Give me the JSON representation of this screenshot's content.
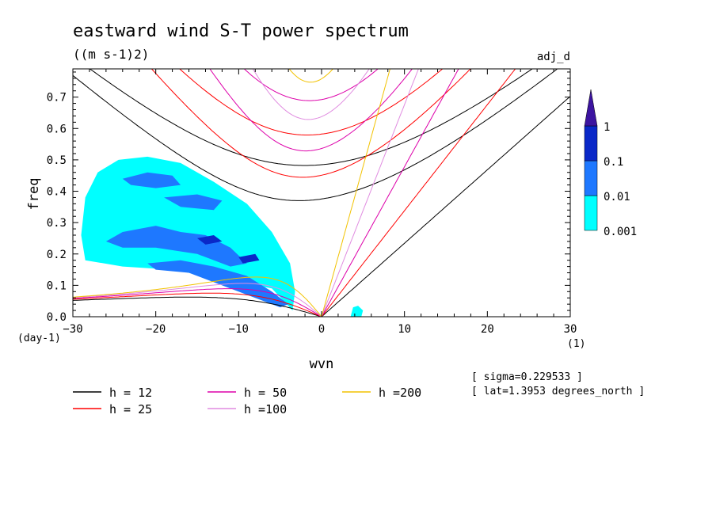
{
  "title": "eastward wind S-T power spectrum",
  "units": "((m s-1)2)",
  "tag": "adj_d",
  "info": [
    "[ sigma=0.229533 ]",
    "[ lat=1.3953 degrees_north ]"
  ],
  "chart_data": {
    "type": "line",
    "xlabel": "wvn",
    "ylabel": "freq",
    "xunit": "(1)",
    "yunit": "(day-1)",
    "xlim": [
      -30,
      30
    ],
    "ylim": [
      0,
      0.79
    ],
    "xticks": [
      -30,
      -20,
      -10,
      0,
      10,
      20,
      30
    ],
    "yticks": [
      0.0,
      0.1,
      0.2,
      0.3,
      0.4,
      0.5,
      0.6,
      0.7
    ],
    "colorbar": {
      "levels": [
        "0.001",
        "0.01",
        "0.1",
        "1"
      ],
      "colors": [
        "#00ffff",
        "#1e78ff",
        "#0a28c8",
        "#3c14a0"
      ]
    },
    "series": [
      {
        "name": "h = 12",
        "h": 12,
        "color": "#000000"
      },
      {
        "name": "h = 25",
        "h": 25,
        "color": "#ff0000"
      },
      {
        "name": "h = 50",
        "h": 50,
        "color": "#dd00aa"
      },
      {
        "name": "h =100",
        "h": 100,
        "color": "#e08ce0"
      },
      {
        "name": "h =200",
        "h": 200,
        "color": "#f2c200"
      }
    ],
    "spectrum_patches": [
      {
        "level": 0,
        "pts": [
          [
            -28.5,
            0.18
          ],
          [
            -29,
            0.26
          ],
          [
            -28.5,
            0.38
          ],
          [
            -27,
            0.46
          ],
          [
            -24.5,
            0.5
          ],
          [
            -21,
            0.51
          ],
          [
            -17,
            0.49
          ],
          [
            -13,
            0.43
          ],
          [
            -9,
            0.36
          ],
          [
            -6,
            0.27
          ],
          [
            -3.8,
            0.17
          ],
          [
            -3.2,
            0.08
          ],
          [
            -3.5,
            0.02
          ],
          [
            -6,
            0.09
          ],
          [
            -12,
            0.12
          ],
          [
            -18,
            0.15
          ],
          [
            -24,
            0.16
          ]
        ]
      },
      {
        "level": 0,
        "pts": [
          [
            3.5,
            0.0
          ],
          [
            3.8,
            0.03
          ],
          [
            4.4,
            0.035
          ],
          [
            5,
            0.02
          ],
          [
            4.8,
            0.0
          ]
        ]
      },
      {
        "level": 1,
        "pts": [
          [
            -26,
            0.24
          ],
          [
            -24,
            0.27
          ],
          [
            -20,
            0.29
          ],
          [
            -17,
            0.27
          ],
          [
            -14,
            0.26
          ],
          [
            -11,
            0.22
          ],
          [
            -9,
            0.17
          ],
          [
            -11,
            0.16
          ],
          [
            -15,
            0.2
          ],
          [
            -20,
            0.22
          ],
          [
            -24,
            0.22
          ]
        ]
      },
      {
        "level": 1,
        "pts": [
          [
            -21,
            0.17
          ],
          [
            -17,
            0.18
          ],
          [
            -13,
            0.16
          ],
          [
            -9,
            0.13
          ],
          [
            -6,
            0.08
          ],
          [
            -4,
            0.04
          ],
          [
            -5,
            0.03
          ],
          [
            -8,
            0.06
          ],
          [
            -12,
            0.1
          ],
          [
            -16,
            0.14
          ],
          [
            -20,
            0.15
          ]
        ]
      },
      {
        "level": 1,
        "pts": [
          [
            -24,
            0.44
          ],
          [
            -21,
            0.46
          ],
          [
            -18,
            0.45
          ],
          [
            -17,
            0.42
          ],
          [
            -20,
            0.41
          ],
          [
            -23,
            0.42
          ]
        ]
      },
      {
        "level": 1,
        "pts": [
          [
            -19,
            0.38
          ],
          [
            -15,
            0.39
          ],
          [
            -12,
            0.37
          ],
          [
            -13,
            0.34
          ],
          [
            -17,
            0.35
          ]
        ]
      },
      {
        "level": 2,
        "pts": [
          [
            -15,
            0.25
          ],
          [
            -13,
            0.26
          ],
          [
            -12,
            0.24
          ],
          [
            -14,
            0.23
          ]
        ]
      },
      {
        "level": 2,
        "pts": [
          [
            -10,
            0.19
          ],
          [
            -8,
            0.2
          ],
          [
            -7.5,
            0.18
          ],
          [
            -9.5,
            0.17
          ]
        ]
      }
    ]
  },
  "legend_layout": [
    [
      0,
      2,
      4
    ],
    [
      1,
      3
    ]
  ]
}
